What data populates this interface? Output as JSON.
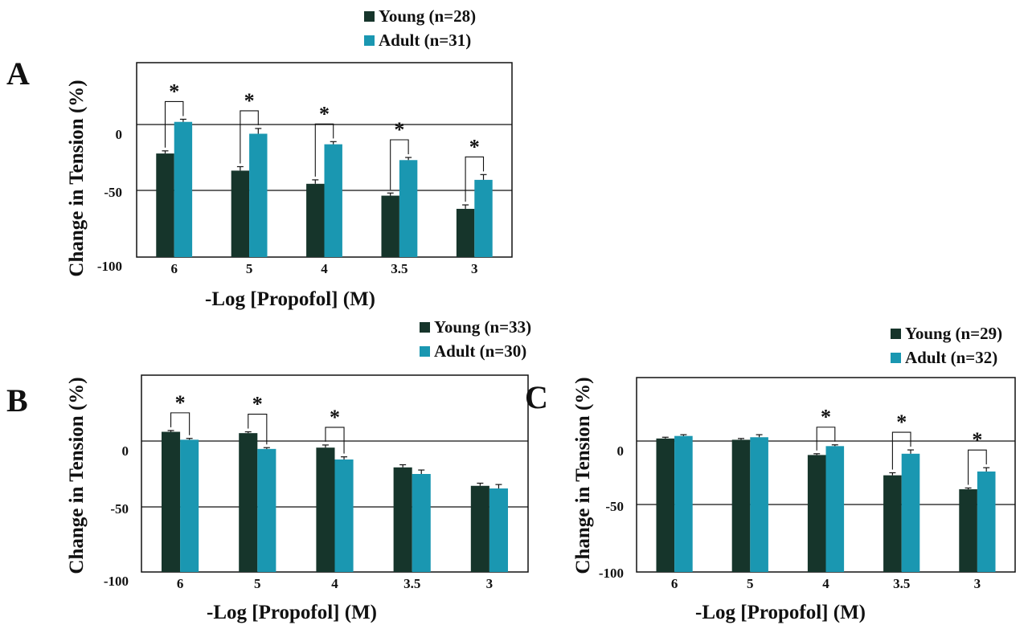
{
  "colors": {
    "young": "#16352b",
    "adult": "#1a97b1",
    "axis": "#111111"
  },
  "chart_data": [
    {
      "panel": "A",
      "type": "bar",
      "categories": [
        "6",
        "5",
        "4",
        "3.5",
        "3"
      ],
      "series": [
        {
          "name": "Young (n=28)",
          "values": [
            -22,
            -35,
            -45,
            -54,
            -64
          ],
          "errors": [
            2,
            3,
            3,
            2,
            3
          ]
        },
        {
          "name": "Adult (n=31)",
          "values": [
            2,
            -7,
            -15,
            -27,
            -42
          ],
          "errors": [
            2,
            4,
            2,
            2,
            4
          ]
        }
      ],
      "significant": [
        true,
        true,
        true,
        true,
        true
      ],
      "yticks": [
        "0",
        "-50",
        "-100"
      ],
      "ylim": [
        -100,
        40
      ],
      "xlabel": "-Log [Propofol] (M)",
      "ylabel": "Change in Tension (%)"
    },
    {
      "panel": "B",
      "type": "bar",
      "categories": [
        "6",
        "5",
        "4",
        "3.5",
        "3"
      ],
      "series": [
        {
          "name": "Young (n=33)",
          "values": [
            7,
            6,
            -5,
            -20,
            -34
          ],
          "errors": [
            1,
            1,
            2,
            2,
            2
          ]
        },
        {
          "name": "Adult (n=30)",
          "values": [
            1,
            -6,
            -14,
            -25,
            -36
          ],
          "errors": [
            1,
            1,
            2,
            3,
            3
          ]
        }
      ],
      "significant": [
        true,
        true,
        true,
        false,
        false
      ],
      "yticks": [
        "0",
        "-50",
        "-100"
      ],
      "ylim": [
        -100,
        45
      ],
      "xlabel": "-Log [Propofol] (M)",
      "ylabel": "Change in Tension (%)"
    },
    {
      "panel": "C",
      "type": "bar",
      "categories": [
        "6",
        "5",
        "4",
        "3.5",
        "3"
      ],
      "series": [
        {
          "name": "Young (n=29)",
          "values": [
            2,
            1,
            -11,
            -27,
            -38
          ],
          "errors": [
            1,
            1,
            1,
            2,
            1
          ]
        },
        {
          "name": "Adult (n=32)",
          "values": [
            4,
            3,
            -4,
            -10,
            -24
          ],
          "errors": [
            1,
            2,
            1,
            3,
            3
          ]
        }
      ],
      "significant": [
        false,
        false,
        true,
        true,
        true
      ],
      "yticks": [
        "0",
        "-50",
        "-100"
      ],
      "ylim": [
        -100,
        48
      ],
      "xlabel": "-Log [Propofol] (M)",
      "ylabel": "Change in Tension (%)"
    }
  ]
}
